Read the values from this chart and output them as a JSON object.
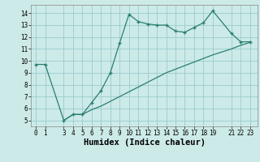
{
  "upper_x": [
    0,
    1,
    3,
    4,
    5,
    6,
    7,
    8,
    9,
    10,
    11,
    12,
    13,
    14,
    15,
    16,
    17,
    18,
    19,
    21,
    22,
    23
  ],
  "upper_y": [
    9.7,
    9.7,
    5.0,
    5.5,
    5.5,
    6.5,
    7.5,
    9.0,
    11.5,
    13.9,
    13.3,
    13.1,
    13.0,
    13.0,
    12.5,
    12.4,
    12.8,
    13.2,
    14.2,
    12.3,
    11.6,
    11.6
  ],
  "lower_x": [
    3,
    4,
    5,
    6,
    7,
    8,
    9,
    10,
    11,
    12,
    13,
    14,
    15,
    16,
    17,
    18,
    19,
    21,
    22,
    23
  ],
  "lower_y": [
    5.0,
    5.5,
    5.5,
    5.9,
    6.2,
    6.6,
    7.0,
    7.4,
    7.8,
    8.2,
    8.6,
    9.0,
    9.3,
    9.6,
    9.9,
    10.2,
    10.5,
    11.0,
    11.3,
    11.55
  ],
  "line_color": "#2a7f6f",
  "bg_color": "#cceae8",
  "grid_color": "#99cccc",
  "xlabel": "Humidex (Indice chaleur)",
  "xlim": [
    -0.5,
    23.8
  ],
  "ylim": [
    4.5,
    14.7
  ],
  "yticks": [
    5,
    6,
    7,
    8,
    9,
    10,
    11,
    12,
    13,
    14
  ],
  "xticks": [
    0,
    1,
    3,
    4,
    5,
    6,
    7,
    8,
    9,
    10,
    11,
    12,
    13,
    14,
    15,
    16,
    17,
    18,
    19,
    21,
    22,
    23
  ],
  "tick_fontsize": 5.5,
  "xlabel_fontsize": 7.5
}
